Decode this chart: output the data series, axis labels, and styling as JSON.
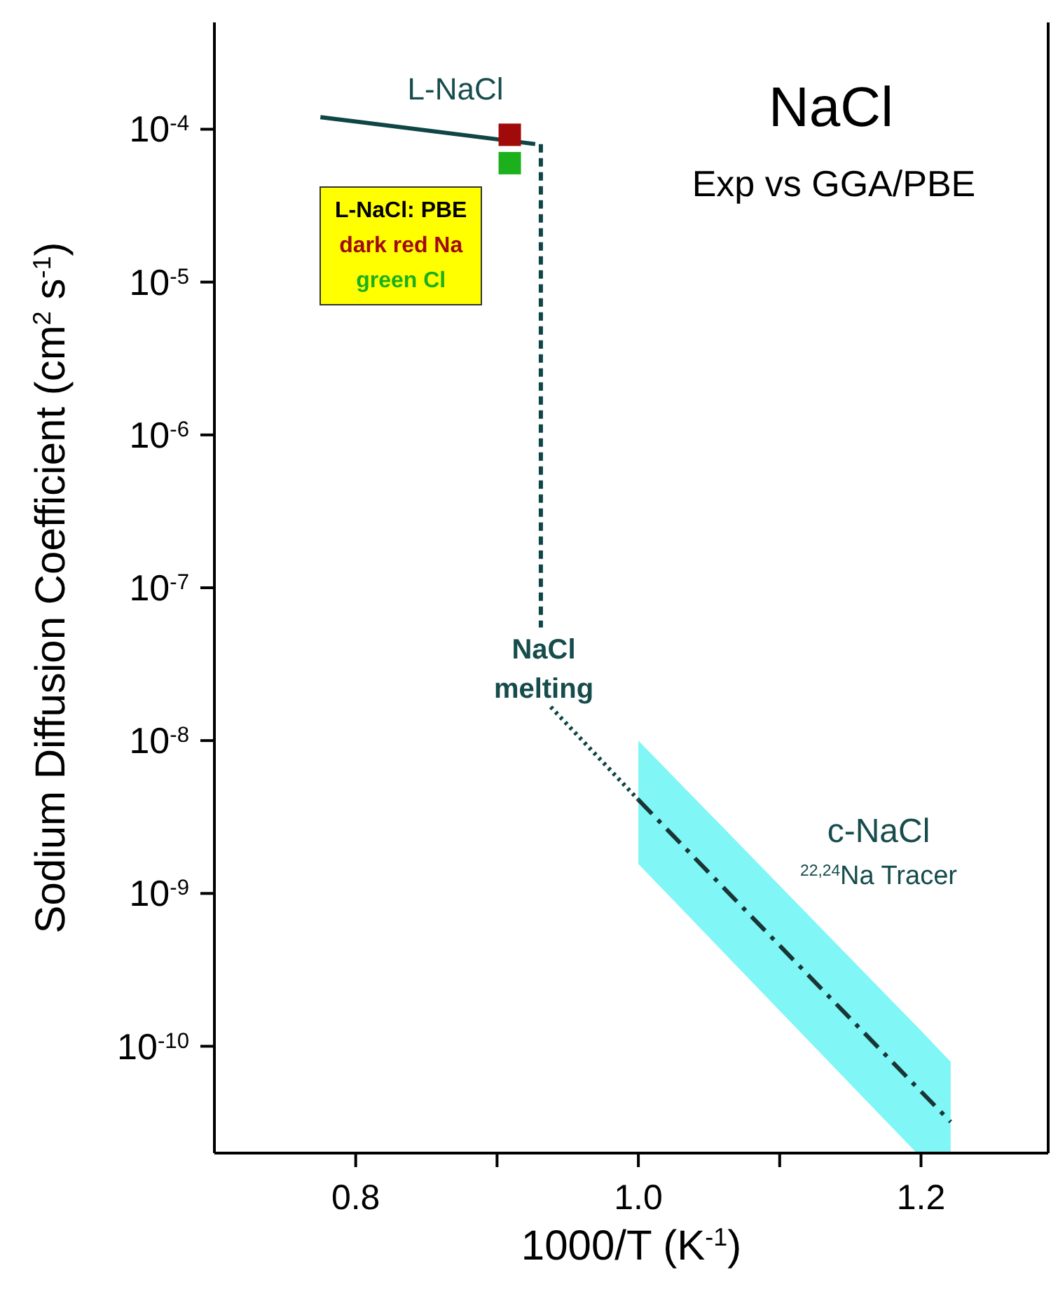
{
  "chart_data": {
    "type": "line",
    "title": "NaCl",
    "subtitle": "Exp vs GGA/PBE",
    "xlabel": "1000/T (K$^{-1}$)",
    "ylabel": "Sodium Diffusion Coefficient (cm$^{2}$ s$^{-1}$)",
    "legend_title": "L-NaCl: PBE",
    "legend": "top left",
    "log": "y",
    "xlim": [
      0.7,
      1.29
    ],
    "xticks": [
      {
        "value": 0.8,
        "label": "0.8"
      },
      {
        "value": 0.9,
        "label": null
      },
      {
        "value": 1.0,
        "label": "1.0"
      },
      {
        "value": 1.1,
        "label": null
      },
      {
        "value": 1.2,
        "label": "1.2"
      }
    ],
    "ylim": [
      2e-11,
      0.0005
    ],
    "yticks": [
      {
        "value": 1e-10,
        "label": "10$^{-10}$"
      },
      {
        "value": 1e-09,
        "label": "10$^{-9}$"
      },
      {
        "value": 1e-08,
        "label": "10$^{-8}$"
      },
      {
        "value": 1e-07,
        "label": "10$^{-7}$"
      },
      {
        "value": 1e-06,
        "label": "10$^{-6}$"
      },
      {
        "value": 1e-05,
        "label": "10$^{-5}$"
      },
      {
        "value": 0.0001,
        "label": "10$^{-4}$"
      }
    ],
    "series": [
      {
        "x": [
          0.775,
          0.927
        ],
        "values": [
          0.00012,
          8e-05
        ],
        "color": "#0f4545",
        "line_style": "solid"
      },
      {
        "type": "scatter",
        "name": "dark red Na",
        "x": [
          0.909
        ],
        "values": [
          9.2e-05
        ],
        "color": "#a00a0a",
        "marker": "square"
      },
      {
        "type": "scatter",
        "name": "green Cl",
        "x": [
          0.909
        ],
        "values": [
          6e-05
        ],
        "color": "#1cb01c",
        "marker": "square"
      },
      {
        "x": [
          0.931,
          0.931
        ],
        "values": [
          8e-05,
          5.5e-08
        ],
        "color": "#0f4545",
        "line_style": "dashed"
      },
      {
        "x": [
          0.938,
          1.0
        ],
        "values": [
          1.66e-08,
          4.1e-09
        ],
        "color": "#0f4545",
        "line_style": "dotted"
      },
      {
        "x": [
          1.0,
          1.197,
          1.221
        ],
        "values": [
          4.1e-09,
          5.4e-11,
          3.2e-11
        ],
        "lower": [
          1.56e-09,
          2e-11,
          2e-11
        ],
        "upper": [
          1e-08,
          1.35e-10,
          7.9e-11
        ],
        "color": "#1a3535",
        "line_style": "dashdot"
      }
    ],
    "annotations": [
      "L-NaCl",
      "NaCl\nmelting",
      "c-NaCl",
      "$^{22,24}$Na Tracer"
    ]
  }
}
